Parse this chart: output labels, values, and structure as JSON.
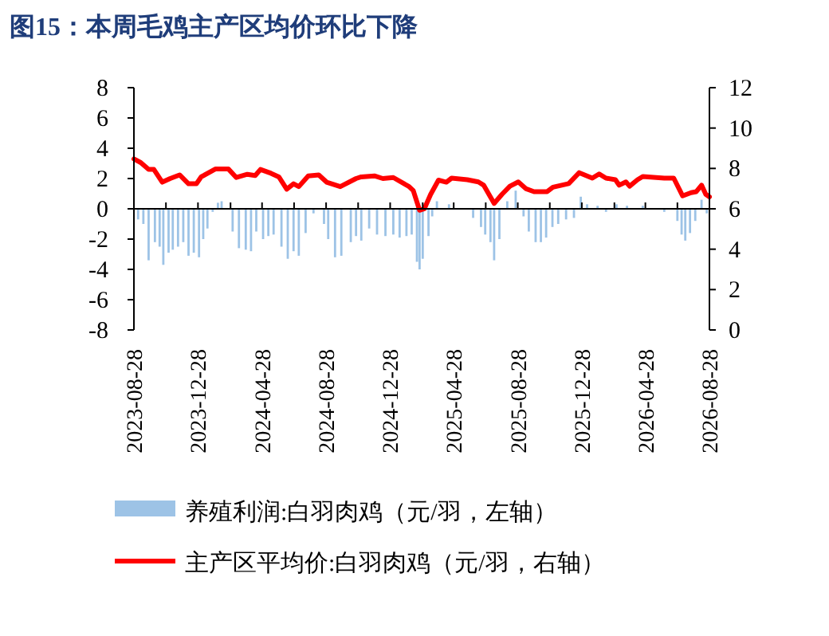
{
  "chart_data": {
    "type": "bar",
    "title": "图15：本周毛鸡主产区均价环比下降",
    "xlim": [
      "2023-08-28",
      "2026-08-28"
    ],
    "xticks": [
      {
        "value": "2023-08-28",
        "label": "2023-08-28"
      },
      {
        "value": "2023-10-28",
        "label": null
      },
      {
        "value": "2023-12-28",
        "label": "2023-12-28"
      },
      {
        "value": "2024-02-28",
        "label": null
      },
      {
        "value": "2024-04-28",
        "label": "2024-04-28"
      },
      {
        "value": "2024-06-28",
        "label": null
      },
      {
        "value": "2024-08-28",
        "label": "2024-08-28"
      },
      {
        "value": "2024-10-28",
        "label": null
      },
      {
        "value": "2024-12-28",
        "label": "2024-12-28"
      },
      {
        "value": "2025-02-28",
        "label": null
      },
      {
        "value": "2025-04-28",
        "label": "2025-04-28"
      },
      {
        "value": "2025-06-28",
        "label": null
      },
      {
        "value": "2025-08-28",
        "label": "2025-08-28"
      },
      {
        "value": "2025-10-28",
        "label": null
      },
      {
        "value": "2025-12-28",
        "label": "2025-12-28"
      },
      {
        "value": "2026-02-28",
        "label": null
      },
      {
        "value": "2026-04-28",
        "label": "2026-04-28"
      },
      {
        "value": "2026-06-28",
        "label": null
      },
      {
        "value": "2026-08-28",
        "label": "2026-08-28"
      }
    ],
    "ylim": [
      -8,
      8
    ],
    "yticks": [
      -8,
      -6,
      -4,
      -2,
      0,
      2,
      4,
      6,
      8
    ],
    "y2lim": [
      0,
      12
    ],
    "y2ticks": [
      0,
      2,
      4,
      6,
      8,
      10,
      12
    ],
    "legend": "bottom",
    "series": [
      {
        "name": "养殖利润:白羽肉鸡（元/羽，左轴）",
        "color": "#9dc3e6",
        "x": [
          "2023-09-05",
          "2023-09-15",
          "2023-09-25",
          "2023-10-07",
          "2023-10-16",
          "2023-10-23",
          "2023-11-02",
          "2023-11-10",
          "2023-11-20",
          "2023-11-30",
          "2023-12-10",
          "2023-12-20",
          "2023-12-30",
          "2024-01-07",
          "2024-01-15",
          "2024-01-25",
          "2024-02-04",
          "2024-02-11",
          "2024-03-03",
          "2024-03-15",
          "2024-03-28",
          "2024-04-07",
          "2024-04-17",
          "2024-04-30",
          "2024-05-10",
          "2024-05-20",
          "2024-06-04",
          "2024-06-16",
          "2024-06-27",
          "2024-07-07",
          "2024-07-20",
          "2024-08-04",
          "2024-08-24",
          "2024-09-01",
          "2024-09-14",
          "2024-09-26",
          "2024-10-14",
          "2024-10-24",
          "2024-11-03",
          "2024-11-18",
          "2024-12-03",
          "2024-12-19",
          "2025-01-03",
          "2025-01-15",
          "2025-01-28",
          "2025-02-07",
          "2025-02-17",
          "2025-02-22",
          "2025-02-28",
          "2025-03-11",
          "2025-03-18",
          "2025-03-27",
          "2025-04-19",
          "2025-06-04",
          "2025-06-19",
          "2025-06-27",
          "2025-07-07",
          "2025-07-14",
          "2025-07-24",
          "2025-08-08",
          "2025-08-24",
          "2025-09-08",
          "2025-09-18",
          "2025-10-01",
          "2025-10-11",
          "2025-10-21",
          "2025-11-02",
          "2025-11-13",
          "2025-11-28",
          "2025-12-13",
          "2025-12-26",
          "2026-01-07",
          "2026-01-27",
          "2026-02-12",
          "2026-03-04",
          "2026-03-24",
          "2026-04-23",
          "2026-06-03",
          "2026-06-28",
          "2026-07-06",
          "2026-07-13",
          "2026-07-22",
          "2026-08-01",
          "2026-08-13",
          "2026-08-23"
        ],
        "values": [
          -0.7,
          -1,
          -3.4,
          -2.2,
          -2.5,
          -3.7,
          -2.9,
          -2.7,
          -2.5,
          -2.2,
          -3.1,
          -2.9,
          -3.2,
          -2,
          -1.3,
          -0.2,
          0.4,
          0.5,
          -1.5,
          -2.6,
          -2.7,
          -2.8,
          -1.5,
          -2,
          -1.8,
          -1.7,
          -2.5,
          -3.3,
          -2.8,
          -3.1,
          -1.6,
          -0.3,
          -1,
          -2,
          -3.2,
          -3.1,
          -2.2,
          -1.8,
          -2.1,
          -1.3,
          -1.7,
          -1.8,
          -1.7,
          -1.9,
          -1.8,
          -1.7,
          -3.5,
          -4,
          -3.3,
          -1.8,
          -0.5,
          0.5,
          0.3,
          -0.6,
          -1.2,
          -1.7,
          -2.2,
          -3.4,
          -2,
          0.5,
          1.2,
          -0.5,
          -1.5,
          -2.2,
          -2.2,
          -1.9,
          -1.2,
          -1,
          -0.7,
          -0.6,
          0.8,
          0.3,
          0.2,
          -0.2,
          0.3,
          0.2,
          0.2,
          -0.2,
          -0.8,
          -1.7,
          -2.1,
          -1.6,
          -0.8,
          0.6,
          -0.3
        ]
      },
      {
        "name": "主产区平均价:白羽肉鸡（元/羽，右轴）",
        "type": "line",
        "axis": "y2",
        "color": "#ff0000",
        "x": [
          "2023-08-28",
          "2023-09-10",
          "2023-09-25",
          "2023-10-05",
          "2023-10-21",
          "2023-11-05",
          "2023-11-23",
          "2023-12-10",
          "2023-12-25",
          "2024-01-03",
          "2024-01-30",
          "2024-02-24",
          "2024-03-10",
          "2024-03-31",
          "2024-04-15",
          "2024-04-25",
          "2024-05-15",
          "2024-05-30",
          "2024-06-14",
          "2024-06-27",
          "2024-07-07",
          "2024-07-25",
          "2024-08-14",
          "2024-08-29",
          "2024-09-24",
          "2024-10-24",
          "2024-11-03",
          "2024-11-28",
          "2024-12-14",
          "2025-01-03",
          "2025-02-02",
          "2025-02-10",
          "2025-02-22",
          "2025-03-03",
          "2025-03-15",
          "2025-03-30",
          "2025-04-14",
          "2025-04-24",
          "2025-05-24",
          "2025-06-14",
          "2025-06-24",
          "2025-07-04",
          "2025-07-14",
          "2025-07-29",
          "2025-08-13",
          "2025-08-29",
          "2025-09-13",
          "2025-09-28",
          "2025-10-23",
          "2025-11-03",
          "2025-12-03",
          "2025-12-23",
          "2026-01-17",
          "2026-01-30",
          "2026-02-12",
          "2026-03-02",
          "2026-03-09",
          "2026-03-22",
          "2026-03-29",
          "2026-04-13",
          "2026-04-23",
          "2026-06-03",
          "2026-06-21",
          "2026-07-08",
          "2026-07-24",
          "2026-08-03",
          "2026-08-13",
          "2026-08-21",
          "2026-08-28"
        ],
        "values": [
          8.47,
          8.29,
          7.95,
          7.95,
          7.32,
          7.5,
          7.68,
          7.24,
          7.24,
          7.58,
          7.97,
          7.97,
          7.55,
          7.71,
          7.65,
          7.95,
          7.76,
          7.58,
          6.97,
          7.24,
          7.1,
          7.63,
          7.68,
          7.32,
          7.1,
          7.5,
          7.58,
          7.63,
          7.5,
          7.55,
          7.1,
          6.9,
          5.93,
          6.0,
          6.71,
          7.42,
          7.32,
          7.52,
          7.44,
          7.33,
          7.17,
          6.72,
          6.27,
          6.72,
          7.12,
          7.33,
          6.99,
          6.85,
          6.85,
          7.07,
          7.25,
          7.79,
          7.52,
          7.73,
          7.52,
          7.44,
          7.17,
          7.33,
          7.12,
          7.44,
          7.6,
          7.52,
          7.52,
          6.64,
          6.8,
          6.85,
          7.17,
          6.72,
          6.59
        ]
      }
    ]
  }
}
